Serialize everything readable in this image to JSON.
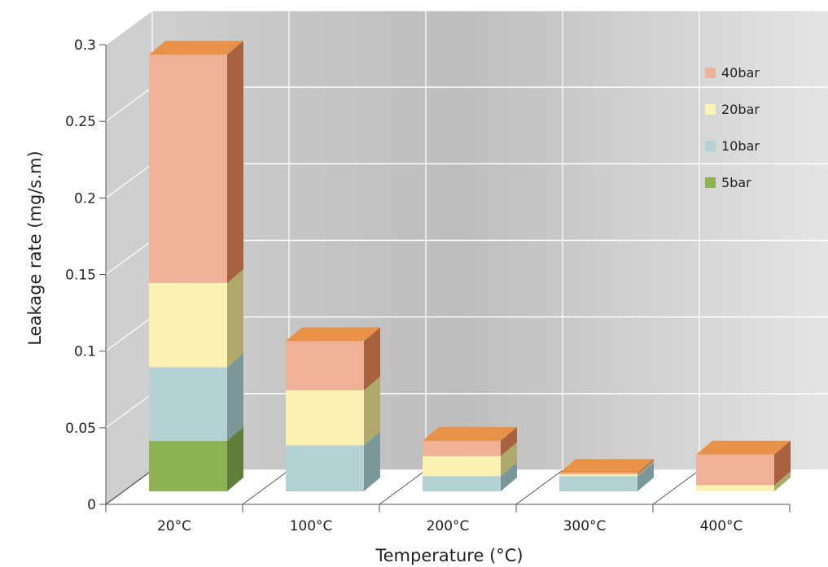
{
  "chart_data": {
    "type": "bar",
    "stacked": true,
    "three_d": true,
    "background": "photograph of laboratory test rig behind plot area",
    "categories": [
      "20°C",
      "100°C",
      "200°C",
      "300°C",
      "400°C"
    ],
    "xlabel": "Temperature (°C)",
    "ylabel": "Leakage rate (mg/s.m)",
    "ylim": [
      0,
      0.3
    ],
    "yticks": [
      {
        "value": 0,
        "label": "0"
      },
      {
        "value": 0.05,
        "label": "0.05"
      },
      {
        "value": 0.1,
        "label": "0.1"
      },
      {
        "value": 0.15,
        "label": "0.15"
      },
      {
        "value": 0.2,
        "label": "0.2"
      },
      {
        "value": 0.25,
        "label": "0.25"
      },
      {
        "value": 0.3,
        "label": "0.3"
      }
    ],
    "grid": true,
    "legend_position": "top-right",
    "series": [
      {
        "name": "5bar",
        "color": "#8db355",
        "side_color": "#5f7f3a",
        "values": [
          0.033,
          0,
          0,
          0,
          0
        ]
      },
      {
        "name": "10bar",
        "color": "#b4d1d3",
        "side_color": "#7b9799",
        "values": [
          0.048,
          0.03,
          0.01,
          0.01,
          0
        ]
      },
      {
        "name": "20bar",
        "color": "#f9f2b2",
        "side_color": "#b0a96c",
        "values": [
          0.055,
          0.036,
          0.013,
          0.001,
          0.004
        ]
      },
      {
        "name": "40bar",
        "color": "#efb298",
        "side_color": "#a8613e",
        "values": [
          0.149,
          0.032,
          0.01,
          0.001,
          0.02
        ]
      }
    ],
    "top_cap_color": "#e89149"
  }
}
